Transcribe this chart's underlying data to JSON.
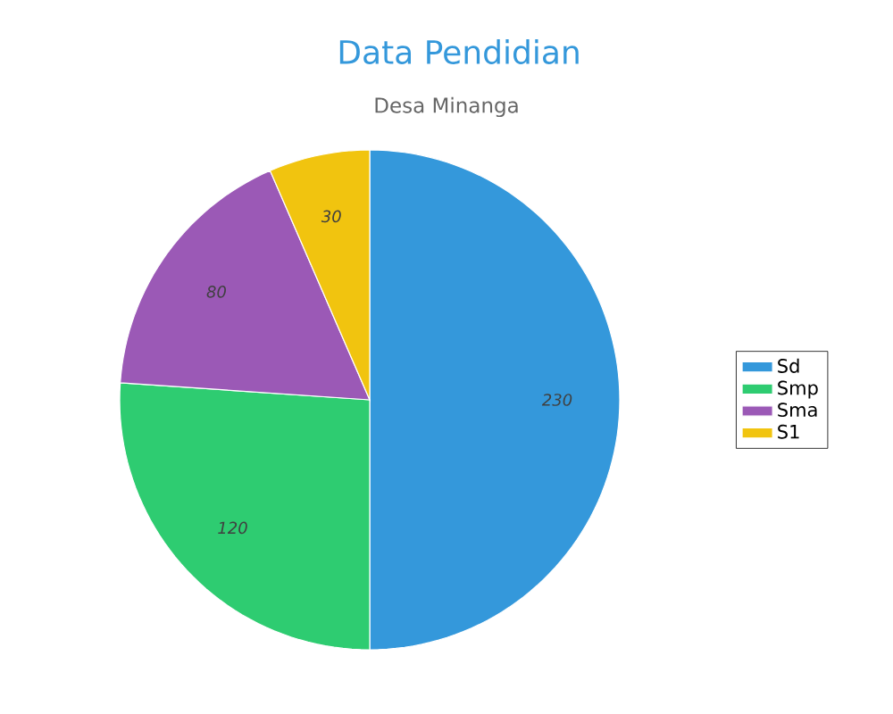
{
  "chart_data": {
    "type": "pie",
    "title": "Data Pendidian",
    "subtitle": "Desa Minanga",
    "categories": [
      "Sd",
      "Smp",
      "Sma",
      "S1"
    ],
    "values": [
      230,
      120,
      80,
      30
    ],
    "colors": [
      "#3498db",
      "#2ecc71",
      "#9b59b6",
      "#f1c40f"
    ],
    "data_labels": true,
    "legend": "right"
  }
}
